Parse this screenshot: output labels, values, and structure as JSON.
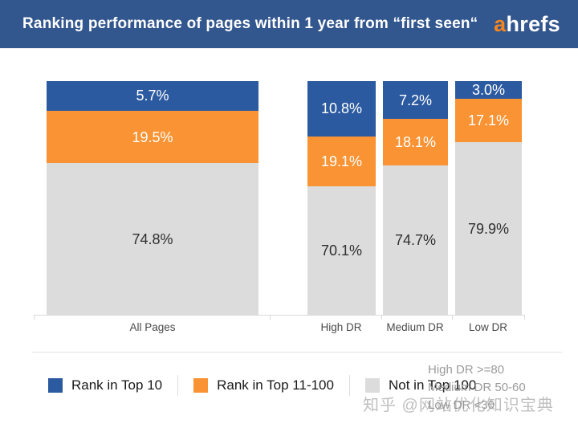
{
  "header": {
    "title": "Ranking performance of pages within 1 year from “first seen“",
    "logo_a": "a",
    "logo_rest": "hrefs"
  },
  "chart_data": {
    "type": "bar",
    "stacked": true,
    "percent_stacked": true,
    "title": "Ranking performance of pages within 1 year from “first seen“",
    "categories": [
      "All Pages",
      "High DR",
      "Medium DR",
      "Low DR"
    ],
    "series": [
      {
        "name": "Rank in Top 10",
        "color": "#2C5AA0",
        "label_color": "#ffffff",
        "values": [
          5.7,
          10.8,
          7.2,
          3.0
        ]
      },
      {
        "name": "Rank in Top 11-100",
        "color": "#F99333",
        "label_color": "#ffffff",
        "values": [
          19.5,
          19.1,
          18.1,
          17.1
        ]
      },
      {
        "name": "Not in Top 100",
        "color": "#DCDCDC",
        "label_color": "#2f2f2f",
        "values": [
          74.8,
          70.1,
          74.7,
          79.9
        ]
      }
    ],
    "display_heights_pct": [
      [
        12.7,
        22.5,
        64.8
      ],
      [
        23.7,
        21.4,
        54.9
      ],
      [
        16.3,
        19.8,
        63.9
      ],
      [
        7.5,
        18.7,
        73.8
      ]
    ],
    "value_suffix": "%",
    "grid": false,
    "legend_position": "bottom"
  },
  "legend_labels": [
    "Rank in Top 10",
    "Rank in Top 11-100",
    "Not in Top 100"
  ],
  "notes": [
    "High DR >=80",
    "Medium DR 50-60",
    "Low DR <30"
  ],
  "watermark": "知乎 @网站优化知识宝典"
}
